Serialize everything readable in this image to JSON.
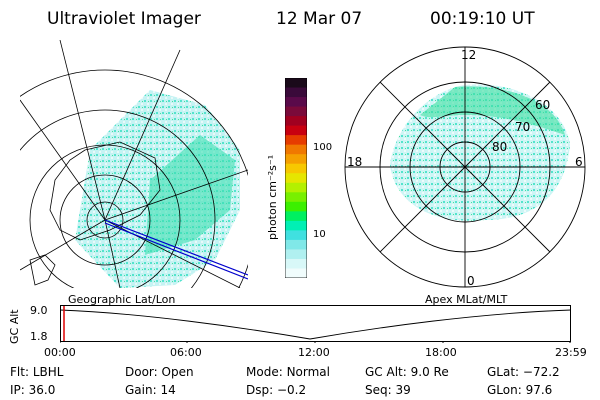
{
  "header": {
    "instrument": "Ultraviolet Imager",
    "date": "12 Mar 07",
    "time": "00:19:10 UT"
  },
  "colorbar": {
    "label": "photon cm⁻²s⁻¹",
    "ticks": [
      "100",
      "10"
    ],
    "colors": [
      "#1a0a1a",
      "#3a0a3a",
      "#5a0a4a",
      "#7a0a3a",
      "#a00020",
      "#c80010",
      "#e63c00",
      "#f07800",
      "#f5a000",
      "#f7c800",
      "#e6e600",
      "#b4f000",
      "#78f000",
      "#3cf000",
      "#00f060",
      "#00f0b4",
      "#40e0e0",
      "#80e8e8",
      "#b0f0f0",
      "#d8f8f8",
      "#f0fcfc"
    ]
  },
  "left_panel": {
    "label": "Geographic Lat/Lon"
  },
  "right_panel": {
    "label": "Apex MLat/MLT",
    "mlt_labels": {
      "top": "12",
      "left": "18",
      "right": "6",
      "bottom": "0"
    },
    "lat_labels": [
      "60",
      "70",
      "80"
    ]
  },
  "timeline": {
    "ylabel": "GC Alt",
    "yticks": [
      "9.0",
      "1.8"
    ],
    "xticks": [
      "00:00",
      "06:00",
      "12:00",
      "18:00",
      "23:59"
    ]
  },
  "info_rows": [
    [
      {
        "label": "Flt:",
        "value": "LBHL"
      },
      {
        "label": "Door:",
        "value": "Open"
      },
      {
        "label": "Mode:",
        "value": "Normal"
      },
      {
        "label": "GC Alt:",
        "value": "9.0 Re"
      },
      {
        "label": "GLat:",
        "value": "−72.2"
      }
    ],
    [
      {
        "label": "IP:",
        "value": "36.0"
      },
      {
        "label": "Gain:",
        "value": "14"
      },
      {
        "label": "Dsp:",
        "value": "−0.2"
      },
      {
        "label": "Seq:",
        "value": "39"
      },
      {
        "label": "GLon:",
        "value": "97.6"
      }
    ]
  ]
}
